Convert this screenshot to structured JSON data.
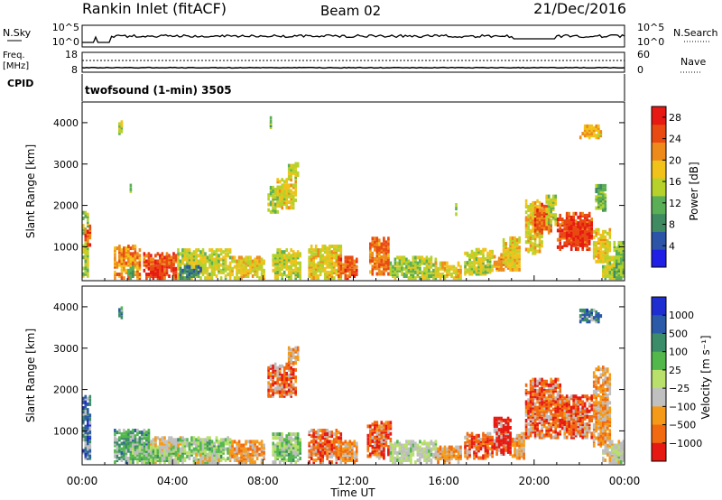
{
  "header": {
    "station": "Rankin Inlet (fitACF)",
    "beam": "Beam 02",
    "date": "21/Dec/2016"
  },
  "top_panels": {
    "nsky_label": "N.Sky",
    "nsearch_label": "N.Search",
    "nsky_ticks": [
      "10^5",
      "10^0"
    ],
    "nsky_right_ticks": [
      "10^5",
      "10^0"
    ],
    "freq_label_1": "Freq.",
    "freq_label_2": "[MHz]",
    "freq_ticks": [
      "18",
      "8"
    ],
    "nave_label": "Nave",
    "nave_ticks": [
      "60",
      "0"
    ],
    "cpid_label": "CPID",
    "cpid_text": "twofsound (1-min) 3505"
  },
  "colors": {
    "power_scale": [
      "#1f1fe6",
      "#2c55a8",
      "#3f8a60",
      "#5aae55",
      "#b6d22a",
      "#f1c21a",
      "#ee8a1a",
      "#e94a12",
      "#e61a12"
    ],
    "velocity_scale": [
      "#e61a12",
      "#f26a10",
      "#f59a18",
      "#c0c0c0",
      "#b8e06a",
      "#52b84c",
      "#3b8c68",
      "#2b5aa8",
      "#1f2ed0"
    ],
    "ground_scatter": "#bdbdbd"
  },
  "chart_data": [
    {
      "type": "heatmap",
      "panel": "power",
      "ylabel": "Slant Range [km]",
      "xlabel": "Time UT",
      "xlim": [
        "00:00",
        "24:00"
      ],
      "ylim": [
        180,
        4500
      ],
      "yticks": [
        "1000",
        "2000",
        "3000",
        "4000"
      ],
      "xticks": [
        "00:00",
        "04:00",
        "08:00",
        "12:00",
        "16:00",
        "20:00",
        "00:00"
      ],
      "colorbar_label": "Power [dB]",
      "colorbar_ticks": [
        "4",
        "8",
        "12",
        "16",
        "20",
        "24",
        "28"
      ],
      "clim": [
        0,
        30
      ],
      "blobs": [
        {
          "t": [
            0.0,
            0.3
          ],
          "r": [
            250,
            1800
          ],
          "v": 14
        },
        {
          "t": [
            0.1,
            0.35
          ],
          "r": [
            1000,
            1500
          ],
          "v": 26
        },
        {
          "t": [
            1.4,
            2.6
          ],
          "r": [
            200,
            1000
          ],
          "v": 22
        },
        {
          "t": [
            2.0,
            2.3
          ],
          "r": [
            200,
            500
          ],
          "v": 10
        },
        {
          "t": [
            2.7,
            4.2
          ],
          "r": [
            200,
            800
          ],
          "v": 26
        },
        {
          "t": [
            3.0,
            3.6
          ],
          "r": [
            200,
            500
          ],
          "v": 29
        },
        {
          "t": [
            4.2,
            6.5
          ],
          "r": [
            200,
            900
          ],
          "v": 16
        },
        {
          "t": [
            4.3,
            5.2
          ],
          "r": [
            200,
            500
          ],
          "v": 6
        },
        {
          "t": [
            6.5,
            8.0
          ],
          "r": [
            200,
            700
          ],
          "v": 18
        },
        {
          "t": [
            8.2,
            8.6
          ],
          "r": [
            1800,
            2400
          ],
          "v": 14
        },
        {
          "t": [
            8.6,
            9.4
          ],
          "r": [
            1900,
            2600
          ],
          "v": 17
        },
        {
          "t": [
            8.4,
            9.6
          ],
          "r": [
            200,
            900
          ],
          "v": 16
        },
        {
          "t": [
            10.0,
            11.4
          ],
          "r": [
            200,
            1000
          ],
          "v": 18
        },
        {
          "t": [
            11.3,
            12.1
          ],
          "r": [
            200,
            700
          ],
          "v": 25
        },
        {
          "t": [
            12.7,
            13.5
          ],
          "r": [
            300,
            1200
          ],
          "v": 24
        },
        {
          "t": [
            13.6,
            15.6
          ],
          "r": [
            200,
            700
          ],
          "v": 14
        },
        {
          "t": [
            15.6,
            16.8
          ],
          "r": [
            200,
            600
          ],
          "v": 18
        },
        {
          "t": [
            16.9,
            18.2
          ],
          "r": [
            300,
            900
          ],
          "v": 16
        },
        {
          "t": [
            18.2,
            19.0
          ],
          "r": [
            400,
            800
          ],
          "v": 22
        },
        {
          "t": [
            18.6,
            19.4
          ],
          "r": [
            400,
            1200
          ],
          "v": 18
        },
        {
          "t": [
            19.6,
            20.4
          ],
          "r": [
            800,
            2100
          ],
          "v": 18
        },
        {
          "t": [
            20.0,
            20.8
          ],
          "r": [
            1300,
            2000
          ],
          "v": 25
        },
        {
          "t": [
            20.5,
            21.0
          ],
          "r": [
            1500,
            2200
          ],
          "v": 16
        },
        {
          "t": [
            21.0,
            22.6
          ],
          "r": [
            900,
            1800
          ],
          "v": 27
        },
        {
          "t": [
            21.3,
            22.3
          ],
          "r": [
            1000,
            1500
          ],
          "v": 29
        },
        {
          "t": [
            22.6,
            23.4
          ],
          "r": [
            600,
            1400
          ],
          "v": 18
        },
        {
          "t": [
            22.7,
            23.2
          ],
          "r": [
            1800,
            2500
          ],
          "v": 12
        },
        {
          "t": [
            23.0,
            24.0
          ],
          "r": [
            200,
            700
          ],
          "v": 16
        },
        {
          "t": [
            22.0,
            23.0
          ],
          "r": [
            3600,
            3900
          ],
          "v": 20
        },
        {
          "t": [
            1.6,
            1.8
          ],
          "r": [
            3700,
            4000
          ],
          "v": 14
        },
        {
          "t": [
            8.3,
            8.4
          ],
          "r": [
            3800,
            4200
          ],
          "v": 12
        },
        {
          "t": [
            9.1,
            9.5
          ],
          "r": [
            2600,
            3000
          ],
          "v": 16
        },
        {
          "t": [
            2.1,
            2.2
          ],
          "r": [
            2300,
            2500
          ],
          "v": 12
        },
        {
          "t": [
            16.5,
            16.6
          ],
          "r": [
            1700,
            2100
          ],
          "v": 14
        },
        {
          "t": [
            23.5,
            24.0
          ],
          "r": [
            200,
            1100
          ],
          "v": 12
        }
      ]
    },
    {
      "type": "heatmap",
      "panel": "velocity",
      "ylabel": "Slant Range [km]",
      "xlabel": "Time UT",
      "xlim": [
        "00:00",
        "24:00"
      ],
      "ylim": [
        180,
        4500
      ],
      "yticks": [
        "1000",
        "2000",
        "3000",
        "4000"
      ],
      "xticks": [
        "00:00",
        "04:00",
        "08:00",
        "12:00",
        "16:00",
        "20:00",
        "00:00"
      ],
      "colorbar_label": "Velocity [m s⁻¹]",
      "colorbar_ticks": [
        "1000",
        "500",
        "100",
        "25",
        "−25",
        "−100",
        "−500",
        "−1000"
      ],
      "blobs": [
        {
          "t": [
            0.0,
            0.4
          ],
          "r": [
            250,
            1800
          ],
          "v": 7
        },
        {
          "t": [
            1.4,
            3.0
          ],
          "r": [
            200,
            1000
          ],
          "v": 6
        },
        {
          "t": [
            3.0,
            4.4
          ],
          "r": [
            200,
            800
          ],
          "v": 3
        },
        {
          "t": [
            2.0,
            4.2
          ],
          "r": [
            200,
            600
          ],
          "v": 5
        },
        {
          "t": [
            4.2,
            6.5
          ],
          "r": [
            200,
            800
          ],
          "v": 5
        },
        {
          "t": [
            5.0,
            6.0
          ],
          "r": [
            200,
            400
          ],
          "v": 3
        },
        {
          "t": [
            6.5,
            8.0
          ],
          "r": [
            200,
            700
          ],
          "v": 2
        },
        {
          "t": [
            8.2,
            9.4
          ],
          "r": [
            1800,
            2600
          ],
          "v": 1
        },
        {
          "t": [
            8.4,
            9.6
          ],
          "r": [
            200,
            900
          ],
          "v": 5
        },
        {
          "t": [
            10.0,
            11.4
          ],
          "r": [
            200,
            1000
          ],
          "v": 1
        },
        {
          "t": [
            11.3,
            12.1
          ],
          "r": [
            200,
            700
          ],
          "v": 2
        },
        {
          "t": [
            12.6,
            13.6
          ],
          "r": [
            300,
            1200
          ],
          "v": 1
        },
        {
          "t": [
            13.6,
            15.6
          ],
          "r": [
            200,
            700
          ],
          "v": 4
        },
        {
          "t": [
            15.6,
            16.8
          ],
          "r": [
            200,
            600
          ],
          "v": 2
        },
        {
          "t": [
            16.9,
            18.2
          ],
          "r": [
            300,
            900
          ],
          "v": 1
        },
        {
          "t": [
            18.2,
            19.0
          ],
          "r": [
            400,
            1300
          ],
          "v": 0
        },
        {
          "t": [
            19.0,
            19.6
          ],
          "r": [
            300,
            900
          ],
          "v": 2
        },
        {
          "t": [
            19.6,
            21.2
          ],
          "r": [
            800,
            2200
          ],
          "v": 1
        },
        {
          "t": [
            21.0,
            22.6
          ],
          "r": [
            800,
            1800
          ],
          "v": 1
        },
        {
          "t": [
            22.6,
            23.4
          ],
          "r": [
            600,
            2500
          ],
          "v": 2
        },
        {
          "t": [
            23.0,
            24.0
          ],
          "r": [
            200,
            700
          ],
          "v": 3
        },
        {
          "t": [
            22.0,
            23.0
          ],
          "r": [
            3600,
            3900
          ],
          "v": 7
        },
        {
          "t": [
            1.6,
            1.8
          ],
          "r": [
            3700,
            4000
          ],
          "v": 6
        },
        {
          "t": [
            9.1,
            9.5
          ],
          "r": [
            2600,
            3000
          ],
          "v": 2
        },
        {
          "t": [
            23.4,
            24.0
          ],
          "r": [
            200,
            600
          ],
          "v": 4
        }
      ]
    }
  ]
}
